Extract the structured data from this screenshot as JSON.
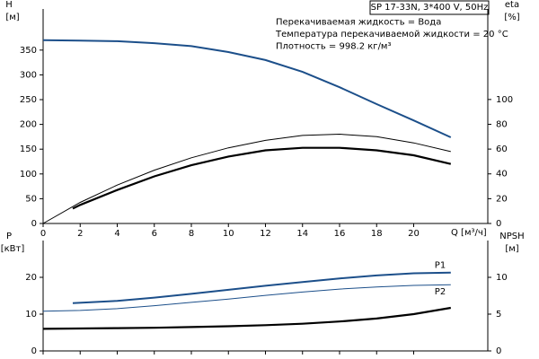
{
  "chart_data": [
    {
      "type": "line",
      "ylabel": "H",
      "ylabel_unit": "[м]",
      "y2label": "eta",
      "y2label_unit": "[%]",
      "xlabel": "Q [м³/ч]",
      "annotations": [
        "SP 17-33N, 3*400 V, 50Hz",
        "Перекачиваемая жидкость = Вода",
        "Температура перекачиваемой жидкости = 20 °C",
        "Плотность = 998.2 кг/м³"
      ],
      "xlim": [
        0,
        24
      ],
      "xticks": [
        0,
        2,
        4,
        6,
        8,
        10,
        12,
        14,
        16,
        18,
        20
      ],
      "ylim": [
        0,
        433
      ],
      "yticks": [
        0,
        50,
        100,
        150,
        200,
        250,
        300,
        350
      ],
      "y2lim": [
        0,
        173
      ],
      "y2ticks": [
        0,
        20,
        40,
        60,
        80,
        100
      ],
      "series": [
        {
          "color": "#1c4f8a",
          "linewidth": 2,
          "x": [
            0,
            2,
            4,
            6,
            8,
            10,
            12,
            14,
            16,
            18,
            20,
            22
          ],
          "values": [
            370,
            369,
            368,
            364,
            358,
            346,
            330,
            306,
            275,
            241,
            208,
            174
          ]
        },
        {
          "color": "#000000",
          "linewidth": 1,
          "axis": "y2",
          "x": [
            0,
            2,
            4,
            6,
            8,
            10,
            12,
            14,
            16,
            18,
            20,
            22
          ],
          "values": [
            0,
            17,
            31,
            43,
            53,
            61,
            67,
            71,
            72,
            70,
            65,
            58
          ]
        },
        {
          "color": "#000000",
          "linewidth": 2.2,
          "axis": "y2",
          "x": [
            1.6,
            2,
            4,
            6,
            8,
            10,
            12,
            14,
            16,
            18,
            20,
            22
          ],
          "values": [
            12,
            15,
            27,
            38,
            47,
            54,
            59,
            61,
            61,
            59,
            55,
            48
          ]
        }
      ]
    },
    {
      "type": "line",
      "ylabel": "P",
      "ylabel_unit": "[кВт]",
      "y2label": "NPSH",
      "y2label_unit": "[м]",
      "xlim": [
        0,
        24
      ],
      "xticks": [
        0,
        2,
        4,
        6,
        8,
        10,
        12,
        14,
        16,
        18,
        20
      ],
      "ylim": [
        0,
        30
      ],
      "yticks": [
        0,
        10,
        20
      ],
      "y2lim": [
        0,
        15
      ],
      "y2ticks": [
        0,
        5,
        10
      ],
      "series": [
        {
          "name": "P1",
          "color": "#1c4f8a",
          "linewidth": 2,
          "x": [
            1.6,
            4,
            6,
            8,
            10,
            12,
            14,
            16,
            18,
            20,
            22
          ],
          "values": [
            13,
            13.6,
            14.5,
            15.5,
            16.6,
            17.7,
            18.7,
            19.7,
            20.5,
            21.1,
            21.3
          ]
        },
        {
          "name": "P2",
          "color": "#1c4f8a",
          "linewidth": 1,
          "x": [
            0,
            2,
            4,
            6,
            8,
            10,
            12,
            14,
            16,
            18,
            20,
            22
          ],
          "values": [
            10.8,
            11,
            11.5,
            12.3,
            13.2,
            14.1,
            15.1,
            16,
            16.8,
            17.4,
            17.8,
            18
          ]
        },
        {
          "color": "#000000",
          "linewidth": 2.2,
          "axis": "y2",
          "x": [
            0,
            2,
            4,
            6,
            8,
            10,
            12,
            14,
            16,
            18,
            20,
            22
          ],
          "values": [
            3.0,
            3.05,
            3.1,
            3.15,
            3.25,
            3.35,
            3.5,
            3.7,
            4.0,
            4.4,
            5.0,
            5.85
          ]
        }
      ]
    }
  ]
}
